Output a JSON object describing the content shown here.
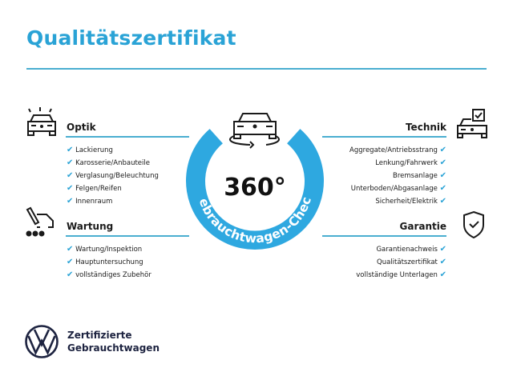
{
  "title": "Qualitätszertifikat",
  "center": {
    "main": "360°",
    "ring_text": "Gebrauchtwagen-Check"
  },
  "sections": {
    "optik": {
      "heading": "Optik",
      "icon": "car-lights-icon",
      "items": [
        "Lackierung",
        "Karosserie/Anbauteile",
        "Verglasung/Beleuchtung",
        "Felgen/Reifen",
        "Innenraum"
      ]
    },
    "wartung": {
      "heading": "Wartung",
      "icon": "service-truck-icon",
      "items": [
        "Wartung/Inspektion",
        "Hauptuntersuchung",
        "vollständiges Zubehör"
      ]
    },
    "technik": {
      "heading": "Technik",
      "icon": "car-checkbox-icon",
      "items": [
        "Aggregate/Antriebsstrang",
        "Lenkung/Fahrwerk",
        "Bremsanlage",
        "Unterboden/Abgasanlage",
        "Sicherheit/Elektrik"
      ]
    },
    "garantie": {
      "heading": "Garantie",
      "icon": "shield-check-icon",
      "items": [
        "Garantienachweis",
        "Qualitätszertifikat",
        "vollständige Unterlagen"
      ]
    }
  },
  "brand": {
    "line1": "Zertifizierte",
    "line2": "Gebrauchtwagen"
  },
  "colors": {
    "accent": "#2aa3d6",
    "ring": "#2ea8e0",
    "dark": "#1d2340"
  }
}
